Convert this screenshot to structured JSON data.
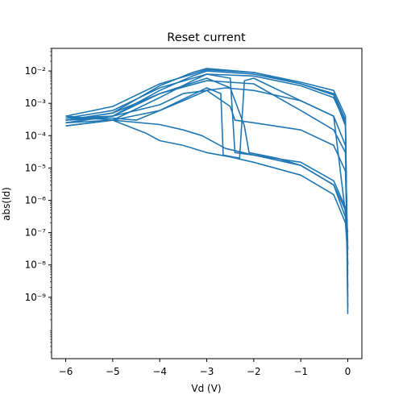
{
  "chart_data": {
    "type": "line",
    "title": "Reset current",
    "xlabel": "Vd (V)",
    "ylabel": "abs(Id)",
    "xlim": [
      -6.3,
      0.3
    ],
    "ylim_log10": [
      -10.9,
      -1.3
    ],
    "yscale": "log",
    "grid": false,
    "color": "#1f77b4",
    "x_ticks": [
      {
        "value": -6,
        "label": "−6"
      },
      {
        "value": -5,
        "label": "−5"
      },
      {
        "value": -4,
        "label": "−4"
      },
      {
        "value": -3,
        "label": "−3"
      },
      {
        "value": -2,
        "label": "−2"
      },
      {
        "value": -1,
        "label": "−1"
      },
      {
        "value": 0,
        "label": "0"
      }
    ],
    "y_ticks": [
      {
        "exp": -2,
        "label": "10⁻²"
      },
      {
        "exp": -3,
        "label": "10⁻³"
      },
      {
        "exp": -4,
        "label": "10⁻⁴"
      },
      {
        "exp": -5,
        "label": "10⁻⁵"
      },
      {
        "exp": -6,
        "label": "10⁻⁶"
      },
      {
        "exp": -7,
        "label": "10⁻⁷"
      },
      {
        "exp": -8,
        "label": "10⁻⁸"
      },
      {
        "exp": -9,
        "label": "10⁻⁹"
      }
    ],
    "series": [
      {
        "x": [
          -6.0,
          -5.0,
          -4.0,
          -3.3,
          -3.0,
          -2.0,
          -1.0,
          -0.3,
          -0.05,
          0.0
        ],
        "y": [
          0.0003,
          0.0005,
          0.0035,
          0.009,
          0.012,
          0.009,
          0.0045,
          0.0025,
          0.0004,
          3e-10
        ]
      },
      {
        "x": [
          -6.0,
          -5.0,
          -4.0,
          -3.3,
          -3.0,
          -2.0,
          -1.0,
          -0.3,
          -0.05,
          0.0
        ],
        "y": [
          0.00025,
          0.0004,
          0.0025,
          0.007,
          0.01,
          0.008,
          0.004,
          0.002,
          0.0003,
          5e-10
        ]
      },
      {
        "x": [
          -6.0,
          -5.0,
          -4.0,
          -3.3,
          -3.0,
          -2.0,
          -1.0,
          -0.3,
          -0.05,
          0.0
        ],
        "y": [
          0.0002,
          0.0003,
          0.0015,
          0.005,
          0.008,
          0.007,
          0.0035,
          0.0015,
          0.00025,
          1e-09
        ]
      },
      {
        "x": [
          -6.0,
          -5.0,
          -4.0,
          -3.3,
          -3.0,
          -2.0,
          -1.0,
          -0.3,
          -0.05,
          0.0
        ],
        "y": [
          0.0004,
          0.0008,
          0.004,
          0.008,
          0.011,
          0.009,
          0.004,
          0.0018,
          0.0002,
          2e-09
        ]
      },
      {
        "x": [
          -6.0,
          -5.0,
          -4.5,
          -4.0,
          -3.5,
          -3.0,
          -2.6,
          -2.0,
          -1.0,
          -0.3,
          -0.05,
          0.0
        ],
        "y": [
          0.0003,
          0.00035,
          0.0003,
          0.0006,
          0.0012,
          0.0025,
          0.003,
          0.0025,
          0.0012,
          0.0004,
          5e-05,
          5e-09
        ]
      },
      {
        "x": [
          -6.0,
          -5.0,
          -4.0,
          -3.5,
          -3.0,
          -2.5,
          -2.4,
          -2.0,
          -1.0,
          -0.3,
          -0.05,
          0.0
        ],
        "y": [
          0.00035,
          0.0004,
          0.0009,
          0.002,
          0.0025,
          0.0008,
          0.0003,
          0.00025,
          0.00015,
          5e-05,
          8e-06,
          1e-08
        ]
      },
      {
        "x": [
          -6.0,
          -5.0,
          -4.0,
          -3.5,
          -3.1,
          -2.6,
          -2.0,
          -1.0,
          -0.3,
          -0.05,
          0.0
        ],
        "y": [
          0.00025,
          0.0003,
          0.00022,
          0.00015,
          0.0001,
          4e-05,
          2.5e-05,
          1.2e-05,
          3e-06,
          3e-07,
          3e-08
        ]
      },
      {
        "x": [
          -6.0,
          -5.0,
          -4.3,
          -4.0,
          -3.5,
          -3.0,
          -2.5,
          -2.0,
          -1.0,
          -0.3,
          -0.05,
          0.0
        ],
        "y": [
          0.0004,
          0.0003,
          0.00012,
          7e-05,
          5e-05,
          3e-05,
          2.2e-05,
          1.5e-05,
          6e-06,
          1.5e-06,
          2e-07,
          2e-08
        ]
      },
      {
        "x": [
          -6.0,
          -5.0,
          -4.0,
          -3.0,
          -2.5,
          -2.2,
          -2.1,
          -1.5,
          -1.0,
          -0.3,
          -0.05,
          0.0
        ],
        "y": [
          0.0003,
          0.0004,
          0.002,
          0.006,
          0.003,
          0.0002,
          3e-05,
          2e-05,
          1.2e-05,
          3e-06,
          5e-07,
          1e-08
        ]
      },
      {
        "x": [
          -6.0,
          -5.0,
          -4.0,
          -3.0,
          -2.7,
          -2.65,
          -2.3,
          -2.2,
          -2.0,
          -1.0,
          -0.3,
          0.0
        ],
        "y": [
          0.0002,
          0.0003,
          0.0006,
          0.003,
          0.002,
          2.5e-05,
          2e-05,
          0.005,
          0.006,
          0.0012,
          0.0004,
          1e-07
        ]
      },
      {
        "x": [
          -6.0,
          -5.0,
          -4.0,
          -3.0,
          -2.5,
          -2.4,
          -2.0,
          -1.0,
          -0.3,
          -0.05,
          0.0
        ],
        "y": [
          0.00035,
          0.0006,
          0.003,
          0.008,
          0.006,
          3e-05,
          2.5e-05,
          1.5e-05,
          4e-06,
          6e-07,
          5e-08
        ]
      },
      {
        "x": [
          -6.0,
          -5.0,
          -4.0,
          -3.0,
          -2.0,
          -1.0,
          -0.3,
          -0.05,
          0.0
        ],
        "y": [
          0.0003,
          0.0005,
          0.002,
          0.005,
          0.004,
          0.0006,
          0.00015,
          3e-05,
          3e-08
        ]
      }
    ]
  }
}
